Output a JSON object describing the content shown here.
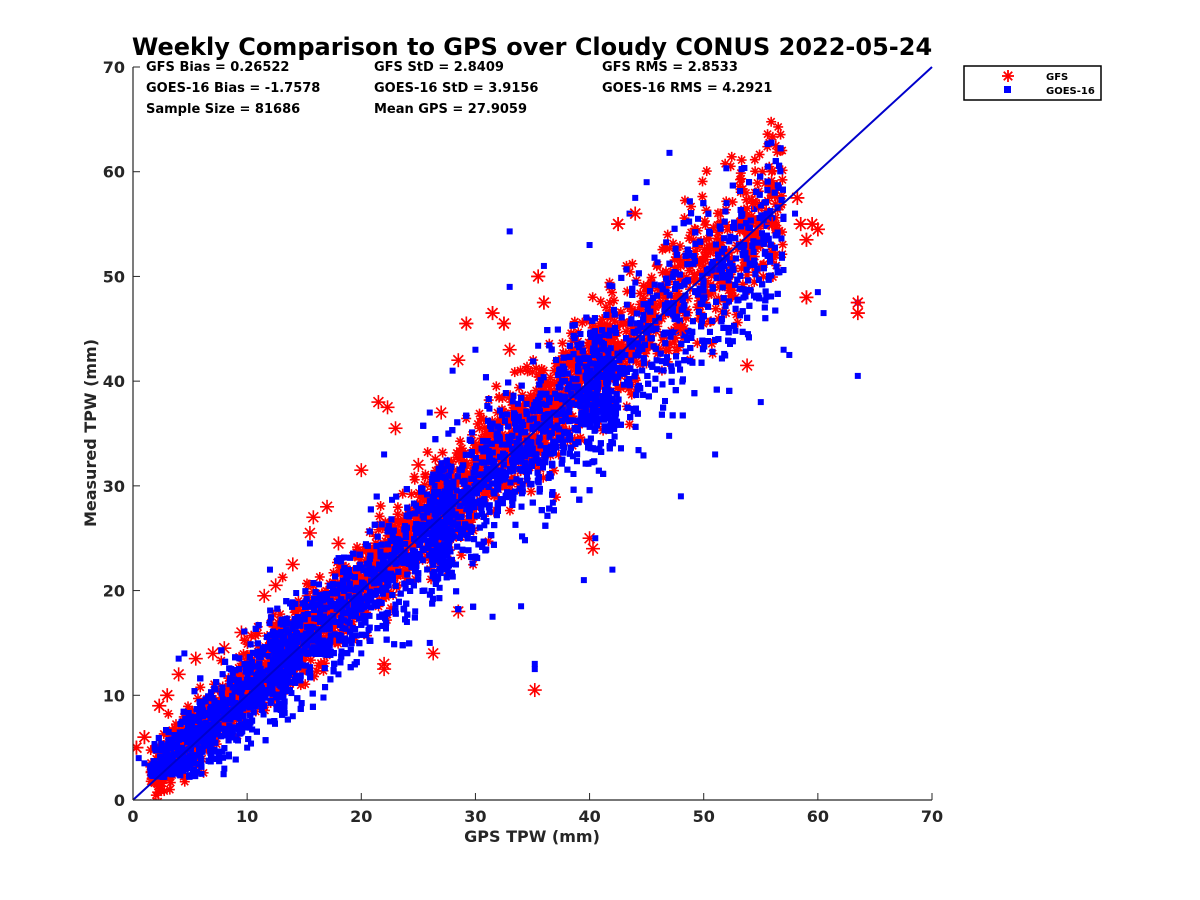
{
  "chart_data": {
    "type": "scatter",
    "title": "Weekly Comparison to GPS over Cloudy CONUS 2022-05-24",
    "xlabel": "GPS TPW (mm)",
    "ylabel": "Measured TPW (mm)",
    "xlim": [
      0,
      70
    ],
    "ylim": [
      0,
      70
    ],
    "xticks": [
      "0",
      "10",
      "20",
      "30",
      "40",
      "50",
      "60",
      "70"
    ],
    "yticks": [
      "0",
      "10",
      "20",
      "30",
      "40",
      "50",
      "60",
      "70"
    ],
    "grid": false,
    "legend_position": "top-right-outside",
    "stats": [
      [
        "GFS Bias = 0.26522",
        "GFS StD = 2.8409",
        "GFS RMS = 2.8533"
      ],
      [
        "GOES-16 Bias = -1.7578",
        "GOES-16 StD = 3.9156",
        "GOES-16 RMS = 4.2921"
      ],
      [
        "Sample Size = 81686",
        "Mean GPS = 27.9059"
      ]
    ],
    "reference_line": {
      "x": [
        0,
        70
      ],
      "y": [
        0,
        70
      ],
      "color": "#0000cc"
    },
    "series": [
      {
        "name": "GFS",
        "marker": "asterisk",
        "color": "#ff0000",
        "bias": 0.26522,
        "std": 2.8409,
        "points": [
          [
            0.3,
            5.0
          ],
          [
            1.0,
            6.0
          ],
          [
            2.3,
            9.0
          ],
          [
            3.0,
            10.0
          ],
          [
            5.5,
            13.5
          ],
          [
            7.0,
            14.0
          ],
          [
            9.5,
            16.0
          ],
          [
            11.5,
            19.5
          ],
          [
            12.5,
            20.5
          ],
          [
            15.5,
            25.5
          ],
          [
            15.8,
            27.0
          ],
          [
            20.0,
            31.5
          ],
          [
            21.5,
            38.0
          ],
          [
            22.3,
            37.5
          ],
          [
            23.0,
            35.5
          ],
          [
            27.0,
            37.0
          ],
          [
            28.5,
            42.0
          ],
          [
            29.2,
            45.5
          ],
          [
            31.5,
            46.5
          ],
          [
            32.5,
            45.5
          ],
          [
            35.5,
            50.0
          ],
          [
            42.5,
            55.0
          ],
          [
            44.0,
            56.0
          ],
          [
            54.3,
            57.0
          ],
          [
            56.0,
            55.0
          ],
          [
            58.2,
            57.5
          ],
          [
            58.5,
            55.0
          ],
          [
            59.0,
            53.5
          ],
          [
            59.5,
            55.0
          ],
          [
            60.0,
            54.5
          ],
          [
            59.0,
            48.0
          ],
          [
            63.5,
            47.5
          ],
          [
            63.5,
            46.5
          ],
          [
            35.2,
            10.5
          ],
          [
            26.3,
            14.0
          ],
          [
            22.0,
            12.5
          ],
          [
            22.0,
            13.0
          ],
          [
            40.0,
            25.0
          ],
          [
            40.3,
            24.0
          ],
          [
            28.5,
            18.0
          ],
          [
            18.0,
            24.5
          ],
          [
            14.0,
            22.5
          ],
          [
            8.0,
            14.5
          ],
          [
            4.0,
            12.0
          ],
          [
            53.8,
            41.5
          ],
          [
            48.0,
            45.0
          ],
          [
            25.0,
            32.0
          ],
          [
            17.0,
            28.0
          ],
          [
            33.0,
            43.0
          ],
          [
            36.0,
            47.5
          ]
        ]
      },
      {
        "name": "GOES-16",
        "marker": "square",
        "color": "#0000ff",
        "bias": -1.7578,
        "std": 3.9156,
        "points": [
          [
            47.0,
            61.8
          ],
          [
            33.0,
            54.3
          ],
          [
            63.5,
            40.5
          ],
          [
            63.5,
            47.5
          ],
          [
            35.2,
            13.0
          ],
          [
            35.2,
            12.5
          ],
          [
            34.0,
            18.5
          ],
          [
            31.5,
            17.5
          ],
          [
            39.5,
            21.0
          ],
          [
            42.0,
            22.0
          ],
          [
            60.5,
            46.5
          ],
          [
            60.0,
            48.5
          ],
          [
            58.0,
            56.0
          ],
          [
            45.0,
            59.0
          ],
          [
            40.5,
            25.0
          ],
          [
            48.0,
            29.0
          ],
          [
            51.0,
            33.0
          ],
          [
            55.0,
            38.0
          ],
          [
            3.0,
            2.5
          ],
          [
            6.0,
            2.5
          ],
          [
            8.0,
            3.0
          ],
          [
            1.0,
            3.5
          ],
          [
            0.5,
            4.0
          ],
          [
            52.0,
            57.0
          ],
          [
            55.5,
            56.0
          ],
          [
            49.5,
            55.5
          ],
          [
            44.0,
            57.5
          ],
          [
            57.0,
            43.0
          ],
          [
            57.5,
            42.5
          ],
          [
            26.0,
            15.0
          ],
          [
            24.0,
            17.0
          ],
          [
            20.0,
            14.0
          ],
          [
            18.0,
            12.0
          ],
          [
            14.0,
            8.0
          ],
          [
            12.0,
            7.5
          ],
          [
            10.0,
            5.0
          ],
          [
            4.0,
            13.5
          ],
          [
            4.5,
            14.0
          ],
          [
            15.5,
            24.5
          ],
          [
            12.0,
            22.0
          ],
          [
            22.0,
            33.0
          ],
          [
            26.0,
            37.0
          ],
          [
            28.0,
            41.0
          ],
          [
            30.0,
            43.0
          ],
          [
            33.0,
            49.0
          ],
          [
            36.0,
            51.0
          ],
          [
            40.0,
            53.0
          ],
          [
            43.5,
            56.0
          ]
        ]
      }
    ]
  }
}
